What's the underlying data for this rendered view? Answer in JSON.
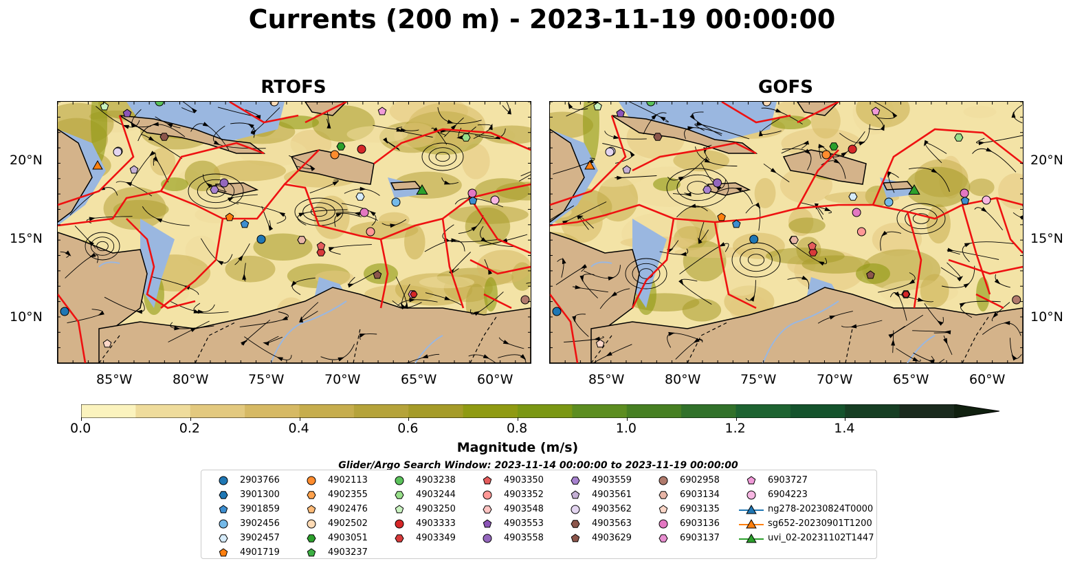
{
  "title": "Currents (200 m) - 2023-11-19 00:00:00",
  "panels": [
    {
      "title": "RTOFS"
    },
    {
      "title": "GOFS"
    }
  ],
  "axes": {
    "lat_ticks": [
      "20°N",
      "15°N",
      "10°N"
    ],
    "lon_ticks": [
      "85°W",
      "80°W",
      "75°W",
      "70°W",
      "65°W",
      "60°W"
    ],
    "lon_range": [
      -89,
      -58
    ],
    "lat_range": [
      7,
      24
    ]
  },
  "colorbar": {
    "label": "Magnitude (m/s)",
    "ticks": [
      "0.0",
      "0.2",
      "0.4",
      "0.6",
      "0.8",
      "1.0",
      "1.2",
      "1.4"
    ],
    "range": [
      0.0,
      1.6
    ],
    "extend": "max"
  },
  "search_window": "Glider/Argo Search Window: 2023-11-14 00:00:00 to 2023-11-19 00:00:00",
  "legend": [
    {
      "label": "2903766",
      "marker": "circle",
      "color": "#1f77b4"
    },
    {
      "label": "3901300",
      "marker": "hexagon",
      "color": "#1f77b4"
    },
    {
      "label": "3901859",
      "marker": "pentagon",
      "color": "#3d8ed0"
    },
    {
      "label": "3902456",
      "marker": "circle",
      "color": "#74b9e8"
    },
    {
      "label": "3902457",
      "marker": "hexagon",
      "color": "#d6ecfb"
    },
    {
      "label": "4901719",
      "marker": "pentagon",
      "color": "#ff7f0e"
    },
    {
      "label": "4902113",
      "marker": "circle",
      "color": "#ff8c2e"
    },
    {
      "label": "4902355",
      "marker": "hexagon",
      "color": "#ffa24d"
    },
    {
      "label": "4902476",
      "marker": "pentagon",
      "color": "#ffbb78"
    },
    {
      "label": "4902502",
      "marker": "circle",
      "color": "#ffdbb5"
    },
    {
      "label": "4903051",
      "marker": "hexagon",
      "color": "#2ca02c"
    },
    {
      "label": "4903237",
      "marker": "pentagon",
      "color": "#3cb043"
    },
    {
      "label": "4903238",
      "marker": "circle",
      "color": "#5bc25b"
    },
    {
      "label": "4903244",
      "marker": "hexagon",
      "color": "#98df8a"
    },
    {
      "label": "4903250",
      "marker": "pentagon",
      "color": "#c9f2c0"
    },
    {
      "label": "4903333",
      "marker": "circle",
      "color": "#d62728"
    },
    {
      "label": "4903349",
      "marker": "hexagon",
      "color": "#d83a3a"
    },
    {
      "label": "4903350",
      "marker": "pentagon",
      "color": "#e55c5c"
    },
    {
      "label": "4903352",
      "marker": "circle",
      "color": "#ff9896"
    },
    {
      "label": "4903548",
      "marker": "hexagon",
      "color": "#ffc4c2"
    },
    {
      "label": "4903553",
      "marker": "pentagon",
      "color": "#8c55b8"
    },
    {
      "label": "4903558",
      "marker": "circle",
      "color": "#9467bd"
    },
    {
      "label": "4903559",
      "marker": "hexagon",
      "color": "#a882d0"
    },
    {
      "label": "4903561",
      "marker": "pentagon",
      "color": "#c5b0d5"
    },
    {
      "label": "4903562",
      "marker": "circle",
      "color": "#e3d5f0"
    },
    {
      "label": "4903563",
      "marker": "hexagon",
      "color": "#8c564b"
    },
    {
      "label": "4903629",
      "marker": "pentagon",
      "color": "#8c564b"
    },
    {
      "label": "6902958",
      "marker": "circle",
      "color": "#b07a6c"
    },
    {
      "label": "6903134",
      "marker": "hexagon",
      "color": "#e8b5a6"
    },
    {
      "label": "6903135",
      "marker": "pentagon",
      "color": "#fcd7c8"
    },
    {
      "label": "6903136",
      "marker": "circle",
      "color": "#e377c2"
    },
    {
      "label": "6903137",
      "marker": "hexagon",
      "color": "#e88ed0"
    },
    {
      "label": "6903727",
      "marker": "pentagon",
      "color": "#f09ad8"
    },
    {
      "label": "6904223",
      "marker": "circle",
      "color": "#f7b6e2"
    },
    {
      "label": "ng278-20230824T0000",
      "marker": "triangle",
      "color": "#1f77b4"
    },
    {
      "label": "sg652-20230901T1200",
      "marker": "triangle",
      "color": "#ff7f0e"
    },
    {
      "label": "uvi_02-20231102T1447",
      "marker": "triangle",
      "color": "#2ca02c"
    }
  ],
  "colors": {
    "land": "#d4b38a",
    "shelf": "#9ab7e0",
    "eez_lines": "#ee1111",
    "colormap": [
      "#fbf3be",
      "#efdc9c",
      "#e3c97f",
      "#d6b964",
      "#c6ad4d",
      "#b5a33a",
      "#a59b28",
      "#8f9a12",
      "#7a9713",
      "#5c8d20",
      "#467f22",
      "#31712a",
      "#1d6331",
      "#14532c",
      "#163e23",
      "#1a2a1d",
      "#10200f"
    ]
  }
}
